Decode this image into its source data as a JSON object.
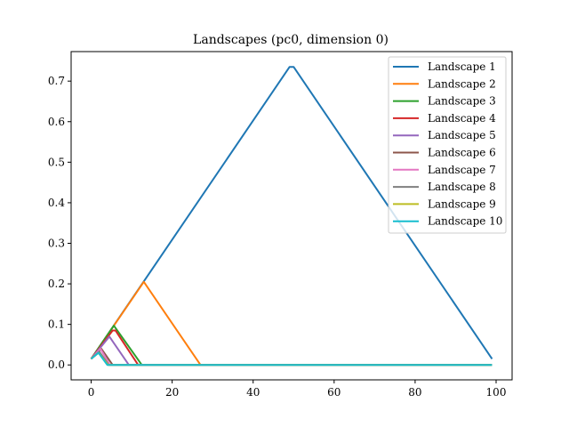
{
  "chart_data": {
    "type": "line",
    "title": "Landscapes (pc0, dimension 0)",
    "xlabel": "",
    "ylabel": "",
    "xlim": [
      -4.95,
      103.95
    ],
    "ylim": [
      -0.0368,
      0.7728
    ],
    "x_ticks": [
      0,
      20,
      40,
      60,
      80,
      100
    ],
    "y_ticks": [
      0.0,
      0.1,
      0.2,
      0.3,
      0.4,
      0.5,
      0.6,
      0.7
    ],
    "x_tick_labels": [
      "0",
      "20",
      "40",
      "60",
      "80",
      "100"
    ],
    "y_tick_labels": [
      "0.0",
      "0.1",
      "0.2",
      "0.3",
      "0.4",
      "0.5",
      "0.6",
      "0.7"
    ],
    "grid": false,
    "legend_position": "top-right",
    "series": [
      {
        "name": "Landscape 1",
        "color": "#1f77b4",
        "x": [
          0,
          49,
          50,
          99
        ],
        "y": [
          0.015,
          0.735,
          0.735,
          0.015
        ]
      },
      {
        "name": "Landscape 2",
        "color": "#ff7f0e",
        "x": [
          0,
          13,
          27,
          99
        ],
        "y": [
          0.015,
          0.205,
          0.0,
          0.0
        ]
      },
      {
        "name": "Landscape 3",
        "color": "#2ca02c",
        "x": [
          0,
          5.6,
          12.5,
          99
        ],
        "y": [
          0.015,
          0.097,
          0.0,
          0.0
        ]
      },
      {
        "name": "Landscape 4",
        "color": "#d62728",
        "x": [
          0,
          5.3,
          6,
          11.6,
          99
        ],
        "y": [
          0.015,
          0.085,
          0.085,
          0.0,
          0.0
        ]
      },
      {
        "name": "Landscape 5",
        "color": "#9467bd",
        "x": [
          0,
          4.5,
          9.3,
          99
        ],
        "y": [
          0.015,
          0.07,
          0.0,
          0.0
        ]
      },
      {
        "name": "Landscape 6",
        "color": "#8c564b",
        "x": [
          0,
          2.5,
          5.3,
          99
        ],
        "y": [
          0.015,
          0.04,
          0.0,
          0.0
        ]
      },
      {
        "name": "Landscape 7",
        "color": "#e377c2",
        "x": [
          0,
          2.3,
          4.6,
          99
        ],
        "y": [
          0.015,
          0.04,
          0.0,
          0.0
        ]
      },
      {
        "name": "Landscape 8",
        "color": "#7f7f7f",
        "x": [
          0,
          2,
          4.3,
          99
        ],
        "y": [
          0.015,
          0.033,
          0.0,
          0.0
        ]
      },
      {
        "name": "Landscape 9",
        "color": "#bcbd22",
        "x": [
          0,
          1.8,
          4.2,
          99
        ],
        "y": [
          0.015,
          0.03,
          0.0,
          0.0
        ]
      },
      {
        "name": "Landscape 10",
        "color": "#17becf",
        "x": [
          0,
          1.8,
          4.0,
          99
        ],
        "y": [
          0.015,
          0.03,
          0.0,
          0.0
        ]
      }
    ]
  }
}
